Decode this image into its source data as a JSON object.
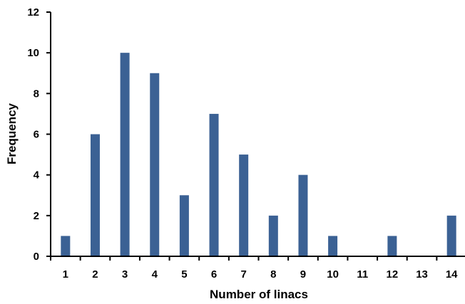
{
  "chart_data": {
    "type": "bar",
    "title": "",
    "xlabel": "Number of linacs",
    "ylabel": "Frequency",
    "categories": [
      "1",
      "2",
      "3",
      "4",
      "5",
      "6",
      "7",
      "8",
      "9",
      "10",
      "11",
      "12",
      "13",
      "14"
    ],
    "values": [
      1,
      6,
      10,
      9,
      3,
      7,
      5,
      2,
      4,
      1,
      0,
      1,
      0,
      2
    ],
    "ylim": [
      0,
      12
    ],
    "yticks": [
      "0",
      "2",
      "4",
      "6",
      "8",
      "10",
      "12"
    ],
    "grid": false,
    "legend": "none",
    "bar_color": "#3b6194",
    "axis_color": "#000000"
  }
}
